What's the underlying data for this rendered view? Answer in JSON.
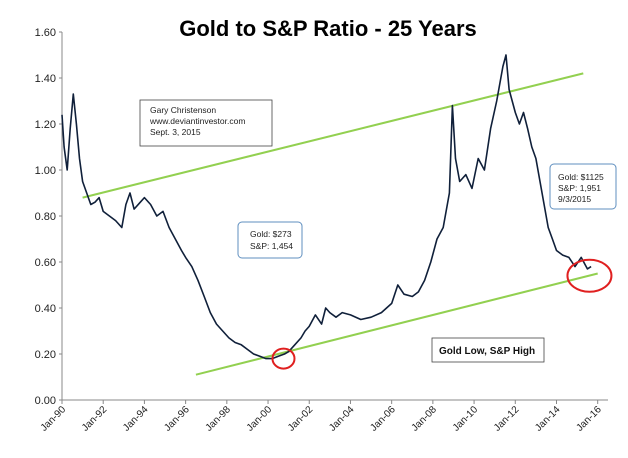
{
  "chart_data": {
    "type": "line",
    "title": "Gold to S&P Ratio - 25 Years",
    "xlabel": "",
    "ylabel": "",
    "ylim": [
      0,
      1.6
    ],
    "y_ticks": [
      "0.00",
      "0.20",
      "0.40",
      "0.60",
      "0.80",
      "1.00",
      "1.20",
      "1.40",
      "1.60"
    ],
    "x_ticks": [
      "Jan-90",
      "Jan-92",
      "Jan-94",
      "Jan-96",
      "Jan-98",
      "Jan-00",
      "Jan-02",
      "Jan-04",
      "Jan-06",
      "Jan-08",
      "Jan-10",
      "Jan-12",
      "Jan-14",
      "Jan-16"
    ],
    "grid": false,
    "legend": "none",
    "series": [
      {
        "x": [
          1990.0,
          1990.1,
          1990.25,
          1990.4,
          1990.55,
          1990.7,
          1990.85,
          1991.0,
          1991.2,
          1991.4,
          1991.6,
          1991.8,
          1992.0,
          1992.3,
          1992.6,
          1992.9,
          1993.1,
          1993.3,
          1993.5,
          1993.8,
          1994.0,
          1994.3,
          1994.6,
          1994.9,
          1995.2,
          1995.5,
          1995.8,
          1996.0,
          1996.3,
          1996.6,
          1996.9,
          1997.2,
          1997.5,
          1997.8,
          1998.1,
          1998.4,
          1998.7,
          1999.0,
          1999.3,
          1999.6,
          1999.9,
          2000.2,
          2000.5,
          2000.8,
          2001.0,
          2001.3,
          2001.6,
          2001.8,
          2002.0,
          2002.3,
          2002.6,
          2002.8,
          2003.0,
          2003.3,
          2003.6,
          2004.0,
          2004.5,
          2005.0,
          2005.5,
          2006.0,
          2006.3,
          2006.6,
          2007.0,
          2007.3,
          2007.6,
          2007.9,
          2008.2,
          2008.5,
          2008.8,
          2008.95,
          2009.1,
          2009.3,
          2009.6,
          2009.9,
          2010.2,
          2010.5,
          2010.8,
          2011.1,
          2011.4,
          2011.55,
          2011.7,
          2011.85,
          2012.0,
          2012.2,
          2012.4,
          2012.6,
          2012.8,
          2013.0,
          2013.2,
          2013.4,
          2013.6,
          2013.8,
          2014.0,
          2014.3,
          2014.6,
          2014.9,
          2015.2,
          2015.5,
          2015.68
        ],
        "y": [
          1.24,
          1.1,
          1.0,
          1.18,
          1.33,
          1.2,
          1.05,
          0.95,
          0.9,
          0.85,
          0.86,
          0.88,
          0.82,
          0.8,
          0.78,
          0.75,
          0.85,
          0.9,
          0.83,
          0.86,
          0.88,
          0.85,
          0.8,
          0.82,
          0.75,
          0.7,
          0.65,
          0.62,
          0.58,
          0.52,
          0.45,
          0.38,
          0.33,
          0.3,
          0.27,
          0.25,
          0.24,
          0.22,
          0.2,
          0.19,
          0.18,
          0.18,
          0.19,
          0.2,
          0.21,
          0.24,
          0.27,
          0.3,
          0.32,
          0.37,
          0.33,
          0.4,
          0.38,
          0.36,
          0.38,
          0.37,
          0.35,
          0.36,
          0.38,
          0.42,
          0.5,
          0.46,
          0.45,
          0.47,
          0.52,
          0.6,
          0.7,
          0.75,
          0.9,
          1.28,
          1.05,
          0.95,
          0.98,
          0.92,
          1.05,
          1.0,
          1.18,
          1.3,
          1.45,
          1.5,
          1.35,
          1.3,
          1.25,
          1.2,
          1.25,
          1.18,
          1.1,
          1.05,
          0.95,
          0.85,
          0.75,
          0.7,
          0.65,
          0.63,
          0.62,
          0.58,
          0.62,
          0.57,
          0.58
        ]
      }
    ],
    "trendlines": [
      {
        "x": [
          1991.0,
          2015.3
        ],
        "y": [
          0.88,
          1.42
        ]
      },
      {
        "x": [
          1996.5,
          2016.0
        ],
        "y": [
          0.11,
          0.55
        ]
      }
    ],
    "annotations": {
      "author_box": [
        "Gary Christenson",
        "www.deviantinvestor.com",
        "Sept. 3, 2015"
      ],
      "low_box": [
        "Gold:  $273",
        "S&P:  1,454"
      ],
      "current_box": [
        "Gold:  $1125",
        "S&P:     1,951",
        "9/3/2015"
      ],
      "label_box": "Gold Low, S&P High"
    },
    "highlight_circles": [
      {
        "x": 2000.75,
        "y": 0.18
      },
      {
        "x": 2015.6,
        "y": 0.54
      }
    ],
    "colors": {
      "series": "#10203a",
      "trendline": "#92d050",
      "circle": "#e02020",
      "box_border": "#5f8fbf"
    }
  }
}
